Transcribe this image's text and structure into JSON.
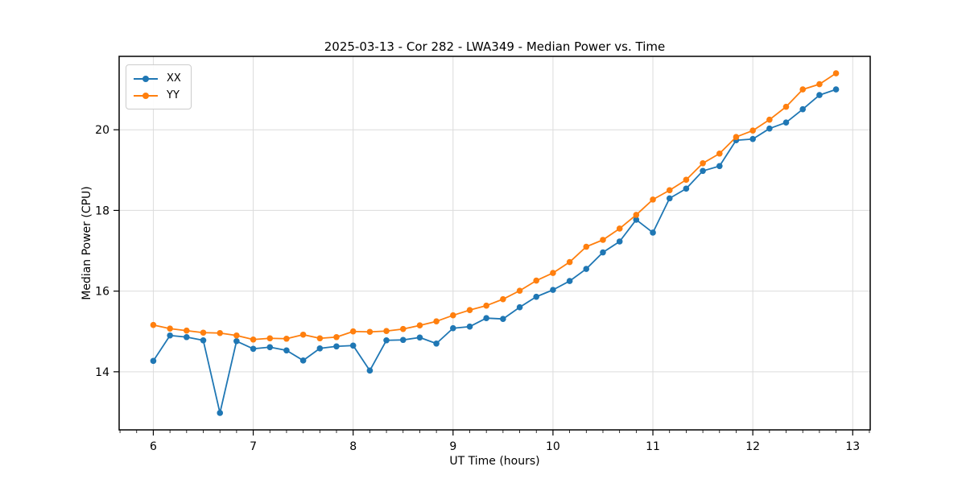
{
  "chart_data": {
    "type": "line",
    "title": "2025-03-13 - Cor 282 - LWA349 - Median Power vs. Time",
    "xlabel": "UT Time (hours)",
    "ylabel": "Median Power (CPU)",
    "xlim": [
      5.658,
      13.175
    ],
    "ylim": [
      12.56,
      21.82
    ],
    "xticks": [
      6,
      7,
      8,
      9,
      10,
      11,
      12,
      13
    ],
    "yticks": [
      14,
      16,
      18,
      20
    ],
    "minor_xtick_step_hours": 0.1667,
    "grid": true,
    "grid_color": "#dcdcdc",
    "legend_position": "upper left",
    "x": [
      6.0,
      6.167,
      6.333,
      6.5,
      6.667,
      6.833,
      7.0,
      7.167,
      7.333,
      7.5,
      7.667,
      7.833,
      8.0,
      8.167,
      8.333,
      8.5,
      8.667,
      8.833,
      9.0,
      9.167,
      9.333,
      9.5,
      9.667,
      9.833,
      10.0,
      10.167,
      10.333,
      10.5,
      10.667,
      10.833,
      11.0,
      11.167,
      11.333,
      11.5,
      11.667,
      11.833,
      12.0,
      12.167,
      12.333,
      12.5,
      12.667,
      12.833
    ],
    "series": [
      {
        "name": "XX",
        "color": "#1f77b4",
        "values": [
          14.27,
          14.9,
          14.86,
          14.78,
          12.98,
          14.76,
          14.57,
          14.61,
          14.53,
          14.28,
          14.58,
          14.63,
          14.65,
          14.03,
          14.78,
          14.79,
          14.85,
          14.7,
          15.08,
          15.12,
          15.33,
          15.31,
          15.6,
          15.86,
          16.03,
          16.25,
          16.55,
          16.96,
          17.23,
          17.77,
          17.45,
          18.3,
          18.54,
          18.98,
          19.1,
          19.74,
          19.77,
          20.03,
          20.18,
          20.51,
          20.86,
          21.0
        ]
      },
      {
        "name": "YY",
        "color": "#ff7f0e",
        "values": [
          15.16,
          15.07,
          15.02,
          14.97,
          14.96,
          14.9,
          14.8,
          14.83,
          14.82,
          14.92,
          14.83,
          14.86,
          15.0,
          14.99,
          15.01,
          15.06,
          15.15,
          15.25,
          15.4,
          15.53,
          15.64,
          15.8,
          16.01,
          16.26,
          16.45,
          16.72,
          17.1,
          17.27,
          17.55,
          17.89,
          18.27,
          18.5,
          18.76,
          19.17,
          19.41,
          19.82,
          19.98,
          20.25,
          20.57,
          21.0,
          21.13,
          21.4
        ]
      }
    ]
  }
}
